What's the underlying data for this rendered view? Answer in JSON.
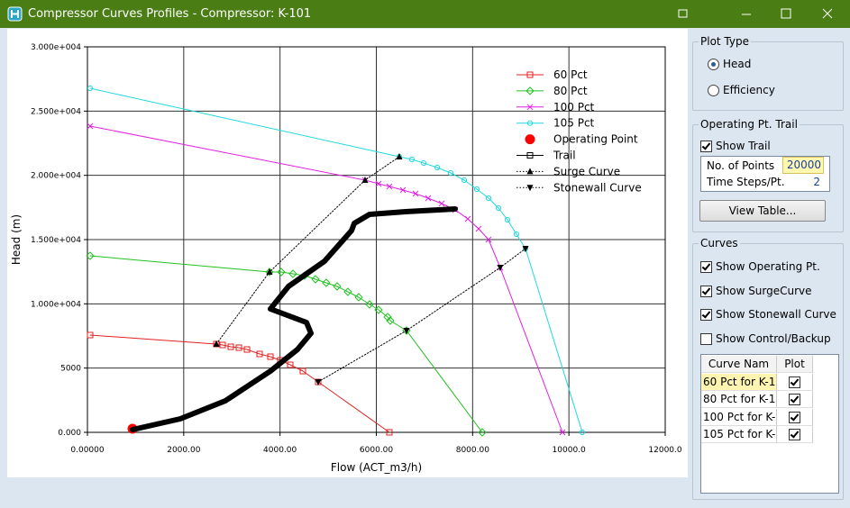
{
  "window": {
    "title": "Compressor Curves Profiles - Compressor: K-101"
  },
  "chart_data": {
    "type": "line",
    "xlabel": "Flow (ACT_m3/h)",
    "ylabel": "Head (m)",
    "xlim": [
      0,
      12000
    ],
    "ylim": [
      0,
      30000
    ],
    "xticks": [
      {
        "value": 0,
        "label": "0.00000"
      },
      {
        "value": 2000,
        "label": "2000.00"
      },
      {
        "value": 4000,
        "label": "4000.00"
      },
      {
        "value": 6000,
        "label": "6000.00"
      },
      {
        "value": 8000,
        "label": "8000.00"
      },
      {
        "value": 10000,
        "label": "10000.0"
      },
      {
        "value": 12000,
        "label": "12000.0"
      }
    ],
    "yticks": [
      {
        "value": 0,
        "label": "0.000"
      },
      5000,
      {
        "value": 10000,
        "label": "1.000e+004"
      },
      {
        "value": 15000,
        "label": "1.500e+004"
      },
      {
        "value": 20000,
        "label": "2.000e+004"
      },
      {
        "value": 25000,
        "label": "2.500e+004"
      },
      {
        "value": 30000,
        "label": "3.000e+004"
      }
    ],
    "grid": true,
    "legend": "upper right",
    "series": [
      {
        "name": "60 Pct",
        "color": "#e02020",
        "marker": "square",
        "style": "solid",
        "width": 1,
        "markers_on_line": true,
        "x": [
          56,
          2677,
          2808,
          2977,
          3145,
          3314,
          3576,
          3800,
          4006,
          4212,
          4474,
          4792,
          6271
        ],
        "values": [
          7570,
          6870,
          6799,
          6659,
          6588,
          6448,
          6098,
          5888,
          5607,
          5257,
          4766,
          3925,
          0
        ]
      },
      {
        "name": "80 Pct",
        "color": "#20c020",
        "marker": "diamond",
        "style": "solid",
        "width": 1,
        "markers_on_line": true,
        "x": [
          56,
          3781,
          4025,
          4268,
          4511,
          4736,
          4960,
          5185,
          5410,
          5634,
          5859,
          6046,
          6234,
          6290,
          6627,
          8199
        ],
        "values": [
          13738,
          12476,
          12476,
          12336,
          12196,
          11915,
          11635,
          11355,
          10934,
          10514,
          9953,
          9532,
          8971,
          8691,
          7920,
          0
        ]
      },
      {
        "name": "100 Pct",
        "color": "#e020e0",
        "marker": "x",
        "style": "solid",
        "width": 1,
        "markers_on_line": true,
        "x": [
          56,
          5766,
          6046,
          6271,
          6552,
          6814,
          7076,
          7357,
          7638,
          7900,
          8124,
          8330,
          8573,
          9865
        ],
        "values": [
          23831,
          19625,
          19345,
          19135,
          18854,
          18574,
          18223,
          17803,
          17312,
          16611,
          15840,
          15000,
          12827,
          0
        ]
      },
      {
        "name": "105 Pct",
        "color": "#20d8e0",
        "marker": "circle",
        "style": "solid",
        "width": 1,
        "markers_on_line": true,
        "x": [
          56,
          6477,
          6739,
          6983,
          7264,
          7544,
          7825,
          8087,
          8330,
          8536,
          8723,
          8910,
          9098,
          10277
        ],
        "values": [
          26774,
          21448,
          21237,
          20957,
          20606,
          20186,
          19625,
          18924,
          18223,
          17452,
          16541,
          15419,
          14298,
          0
        ]
      },
      {
        "name": "Operating Point",
        "color": "#ff0000",
        "marker": "dot",
        "style": "none",
        "width": 0,
        "markers_on_line": true,
        "x": [
          936
        ],
        "values": [
          280
        ]
      },
      {
        "name": "Trail",
        "color": "#000000",
        "marker": "square",
        "style": "solid",
        "width": 6,
        "markers_on_line": false,
        "x": [
          936,
          1928,
          2864,
          3800,
          4362,
          4643,
          4549,
          3800,
          4174,
          4923,
          5485,
          5541,
          5859,
          6608,
          7638
        ],
        "values": [
          210,
          1051,
          2453,
          4766,
          6448,
          7710,
          8551,
          9602,
          11355,
          13317,
          15700,
          16261,
          16962,
          17172,
          17382
        ]
      },
      {
        "name": "Surge Curve",
        "color": "#000000",
        "marker": "triangle-up",
        "style": "dotted",
        "width": 1,
        "markers_on_line": true,
        "x": [
          2677,
          3781,
          5766,
          6477
        ],
        "values": [
          6870,
          12476,
          19625,
          21448
        ]
      },
      {
        "name": "Stonewall Curve",
        "color": "#000000",
        "marker": "triangle-down",
        "style": "dotted",
        "width": 1,
        "markers_on_line": true,
        "x": [
          4792,
          6627,
          8573,
          9098
        ],
        "values": [
          3925,
          7920,
          12827,
          14298
        ]
      }
    ]
  },
  "panel": {
    "plot_type": {
      "title": "Plot Type",
      "options": [
        {
          "label": "Head",
          "selected": true
        },
        {
          "label": "Efficiency",
          "selected": false
        }
      ]
    },
    "trail": {
      "title": "Operating Pt. Trail",
      "show_trail": {
        "label": "Show Trail",
        "checked": true
      },
      "fields": [
        {
          "label": "No. of Points",
          "value": "20000"
        },
        {
          "label": "Time Steps/Pt.",
          "value": "2"
        }
      ],
      "button": "View Table..."
    },
    "curves": {
      "title": "Curves",
      "checks": [
        {
          "label": "Show Operating Pt.",
          "checked": true
        },
        {
          "label": "Show SurgeCurve",
          "checked": true
        },
        {
          "label": "Show Stonewall Curve",
          "checked": true
        },
        {
          "label": "Show Control/Backup",
          "checked": false
        }
      ],
      "table": {
        "columns": [
          "Curve Nam",
          "Plot"
        ],
        "rows": [
          {
            "name": "60 Pct for K-1(",
            "plot": true
          },
          {
            "name": "80 Pct for K-1(",
            "plot": true
          },
          {
            "name": "100 Pct for K-",
            "plot": true
          },
          {
            "name": "105 Pct for K-",
            "plot": true
          }
        ]
      }
    }
  }
}
